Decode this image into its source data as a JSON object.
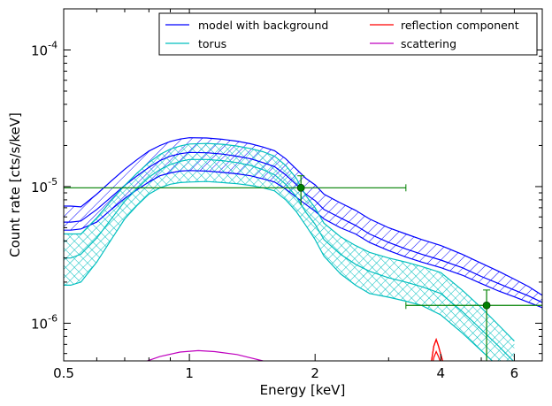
{
  "chart_data": {
    "type": "line",
    "xlabel": "Energy [keV]",
    "ylabel": "Count rate [cts/s/keV]",
    "xscale": "log",
    "yscale": "log",
    "xlim": [
      0.5,
      7.0
    ],
    "ylim": [
      5.3e-07,
      0.0002
    ],
    "grid": false,
    "legend_location": "top-right",
    "x_ticks": [
      {
        "value": 0.5,
        "label": "0.5"
      },
      {
        "value": 1,
        "label": "1"
      },
      {
        "value": 2,
        "label": "2"
      },
      {
        "value": 4,
        "label": "4"
      },
      {
        "value": 6,
        "label": "6"
      }
    ],
    "y_ticks": [
      {
        "value": 1e-06,
        "base": "10",
        "exp": "-6"
      },
      {
        "value": 1e-05,
        "base": "10",
        "exp": "-5"
      },
      {
        "value": 0.0001,
        "base": "10",
        "exp": "-4"
      }
    ],
    "legend": [
      {
        "label": "model with background",
        "color": "#0000ff"
      },
      {
        "label": "torus",
        "color": "#00bfbf"
      },
      {
        "label": "reflection component",
        "color": "#ff0000"
      },
      {
        "label": "scattering",
        "color": "#bf00bf"
      }
    ],
    "series": [
      {
        "name": "model with background",
        "color": "#0000ff",
        "x": [
          0.5,
          0.52,
          0.55,
          0.6,
          0.65,
          0.7,
          0.75,
          0.8,
          0.85,
          0.9,
          0.95,
          1.0,
          1.1,
          1.2,
          1.3,
          1.4,
          1.5,
          1.6,
          1.7,
          1.8,
          1.9,
          2.0,
          2.1,
          2.3,
          2.5,
          2.7,
          3.0,
          3.3,
          3.6,
          4.0,
          4.5,
          5.0,
          5.5,
          6.0,
          6.5,
          7.0
        ],
        "median": [
          5.5e-06,
          5.5e-06,
          5.6e-06,
          6.8e-06,
          8.4e-06,
          1.02e-05,
          1.2e-05,
          1.38e-05,
          1.55e-05,
          1.67e-05,
          1.74e-05,
          1.78e-05,
          1.77e-05,
          1.73e-05,
          1.67e-05,
          1.6e-05,
          1.5e-05,
          1.4e-05,
          1.22e-05,
          1.04e-05,
          8.8e-06,
          7.9e-06,
          6.8e-06,
          5.9e-06,
          5.2e-06,
          4.5e-06,
          3.9e-06,
          3.5e-06,
          3.2e-06,
          2.9e-06,
          2.55e-06,
          2.2e-06,
          1.95e-06,
          1.75e-06,
          1.58e-06,
          1.42e-06
        ],
        "lower": [
          4.8e-06,
          4.8e-06,
          4.9e-06,
          5.5e-06,
          6.8e-06,
          8.2e-06,
          9.5e-06,
          1.08e-05,
          1.2e-05,
          1.26e-05,
          1.3e-05,
          1.31e-05,
          1.3e-05,
          1.27e-05,
          1.24e-05,
          1.2e-05,
          1.14e-05,
          1.08e-05,
          9.6e-06,
          8.4e-06,
          7.4e-06,
          6.6e-06,
          5.8e-06,
          5e-06,
          4.5e-06,
          3.9e-06,
          3.4e-06,
          3.05e-06,
          2.8e-06,
          2.55e-06,
          2.25e-06,
          1.95e-06,
          1.72e-06,
          1.56e-06,
          1.42e-06,
          1.3e-06
        ],
        "upper": [
          7.2e-06,
          7.2e-06,
          7.1e-06,
          8.8e-06,
          1.1e-05,
          1.34e-05,
          1.58e-05,
          1.82e-05,
          2e-05,
          2.14e-05,
          2.23e-05,
          2.28e-05,
          2.27e-05,
          2.22e-05,
          2.15e-05,
          2.06e-05,
          1.95e-05,
          1.83e-05,
          1.6e-05,
          1.35e-05,
          1.15e-05,
          1.03e-05,
          8.8e-06,
          7.6e-06,
          6.7e-06,
          5.8e-06,
          5e-06,
          4.5e-06,
          4.1e-06,
          3.7e-06,
          3.2e-06,
          2.75e-06,
          2.4e-06,
          2.1e-06,
          1.85e-06,
          1.6e-06
        ]
      },
      {
        "name": "torus",
        "color": "#00bfbf",
        "x": [
          0.5,
          0.52,
          0.55,
          0.6,
          0.65,
          0.7,
          0.75,
          0.8,
          0.85,
          0.9,
          0.95,
          1.0,
          1.1,
          1.2,
          1.3,
          1.4,
          1.5,
          1.6,
          1.7,
          1.8,
          1.9,
          2.0,
          2.1,
          2.3,
          2.5,
          2.7,
          3.0,
          3.3,
          3.6,
          4.0,
          4.5,
          5.0,
          5.5,
          6.0
        ],
        "median": [
          3e-06,
          3e-06,
          3.2e-06,
          4.2e-06,
          5.8e-06,
          7.8e-06,
          9.7e-06,
          1.17e-05,
          1.33e-05,
          1.45e-05,
          1.53e-05,
          1.58e-05,
          1.58e-05,
          1.55e-05,
          1.5e-05,
          1.43e-05,
          1.33e-05,
          1.22e-05,
          1.04e-05,
          8.5e-06,
          6.5e-06,
          5.3e-06,
          4.1e-06,
          3.2e-06,
          2.7e-06,
          2.4e-06,
          2.15e-06,
          2e-06,
          1.85e-06,
          1.65e-06,
          1.22e-06,
          9e-07,
          6.8e-07,
          5.2e-07
        ],
        "lower": [
          1.9e-06,
          1.9e-06,
          2e-06,
          2.8e-06,
          4.1e-06,
          5.8e-06,
          7.3e-06,
          8.8e-06,
          9.8e-06,
          1.04e-05,
          1.07e-05,
          1.08e-05,
          1.09e-05,
          1.07e-05,
          1.05e-05,
          1.02e-05,
          9.8e-06,
          9.3e-06,
          8e-06,
          6.6e-06,
          5.2e-06,
          4.1e-06,
          3.1e-06,
          2.3e-06,
          1.9e-06,
          1.65e-06,
          1.55e-06,
          1.45e-06,
          1.35e-06,
          1.15e-06,
          8.5e-07,
          6.3e-07,
          4.8e-07,
          3.6e-07
        ],
        "upper": [
          4.5e-06,
          4.5e-06,
          4.5e-06,
          5.9e-06,
          7.9e-06,
          1.02e-05,
          1.26e-05,
          1.5e-05,
          1.72e-05,
          1.88e-05,
          1.98e-05,
          2.05e-05,
          2.07e-05,
          2.04e-05,
          1.98e-05,
          1.9e-05,
          1.8e-05,
          1.67e-05,
          1.43e-05,
          1.16e-05,
          8.6e-06,
          7e-06,
          5.4e-06,
          4.3e-06,
          3.7e-06,
          3.3e-06,
          3e-06,
          2.8e-06,
          2.6e-06,
          2.35e-06,
          1.75e-06,
          1.3e-06,
          9.7e-07,
          7.4e-07
        ]
      },
      {
        "name": "reflection component",
        "color": "#ff0000",
        "x": [
          3.75,
          3.8,
          3.85,
          3.9,
          3.95,
          4.0,
          4.05,
          4.1
        ],
        "median": [
          4e-07,
          5.3e-07,
          6.8e-07,
          7.6e-07,
          6.8e-07,
          5.9e-07,
          5.2e-07,
          4e-07
        ],
        "lower": [
          4e-07,
          4.6e-07,
          5.6e-07,
          6.2e-07,
          5.7e-07,
          5.1e-07,
          4.6e-07,
          4e-07
        ],
        "upper": [
          4e-07,
          5.3e-07,
          6.8e-07,
          7.6e-07,
          6.8e-07,
          5.9e-07,
          5.2e-07,
          4e-07
        ]
      },
      {
        "name": "scattering",
        "color": "#bf00bf",
        "x": [
          0.75,
          0.85,
          0.95,
          1.05,
          1.15,
          1.3,
          1.5,
          1.7
        ],
        "median": [
          5e-07,
          5.7e-07,
          6.15e-07,
          6.3e-07,
          6.2e-07,
          5.9e-07,
          5.3e-07,
          4.6e-07
        ]
      }
    ],
    "data_points": {
      "color": "#008000",
      "points": [
        {
          "x": 1.85,
          "y": 9.8e-06,
          "x_low": 0.5,
          "x_high": 3.3,
          "y_low": 7.3e-06,
          "y_high": 1.2e-05
        },
        {
          "x": 5.15,
          "y": 1.35e-06,
          "x_low": 3.3,
          "x_high": 7.0,
          "y_low": 4e-07,
          "y_high": 1.75e-06
        }
      ]
    }
  }
}
